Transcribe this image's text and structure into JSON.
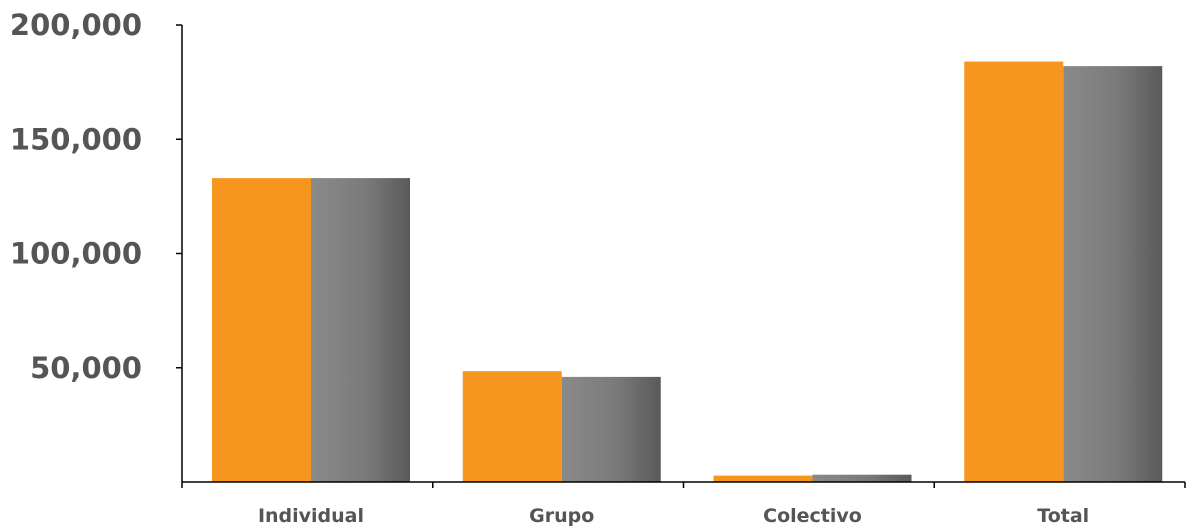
{
  "chart_data": {
    "type": "bar",
    "categories": [
      "Individual",
      "Grupo",
      "Colectivo",
      "Total"
    ],
    "series": [
      {
        "values": [
          133000,
          48500,
          2800,
          184000
        ],
        "color": "#f7961e"
      },
      {
        "values": [
          133000,
          46000,
          3200,
          182000
        ],
        "color": "#7f7f7f"
      }
    ],
    "ylim": [
      0,
      200000
    ],
    "yticks": [
      "50,000",
      "100,000",
      "150,000",
      "200,000"
    ],
    "ytick_values": [
      50000,
      100000,
      150000,
      200000
    ],
    "grid": false,
    "title": "",
    "xlabel": "",
    "ylabel": ""
  }
}
